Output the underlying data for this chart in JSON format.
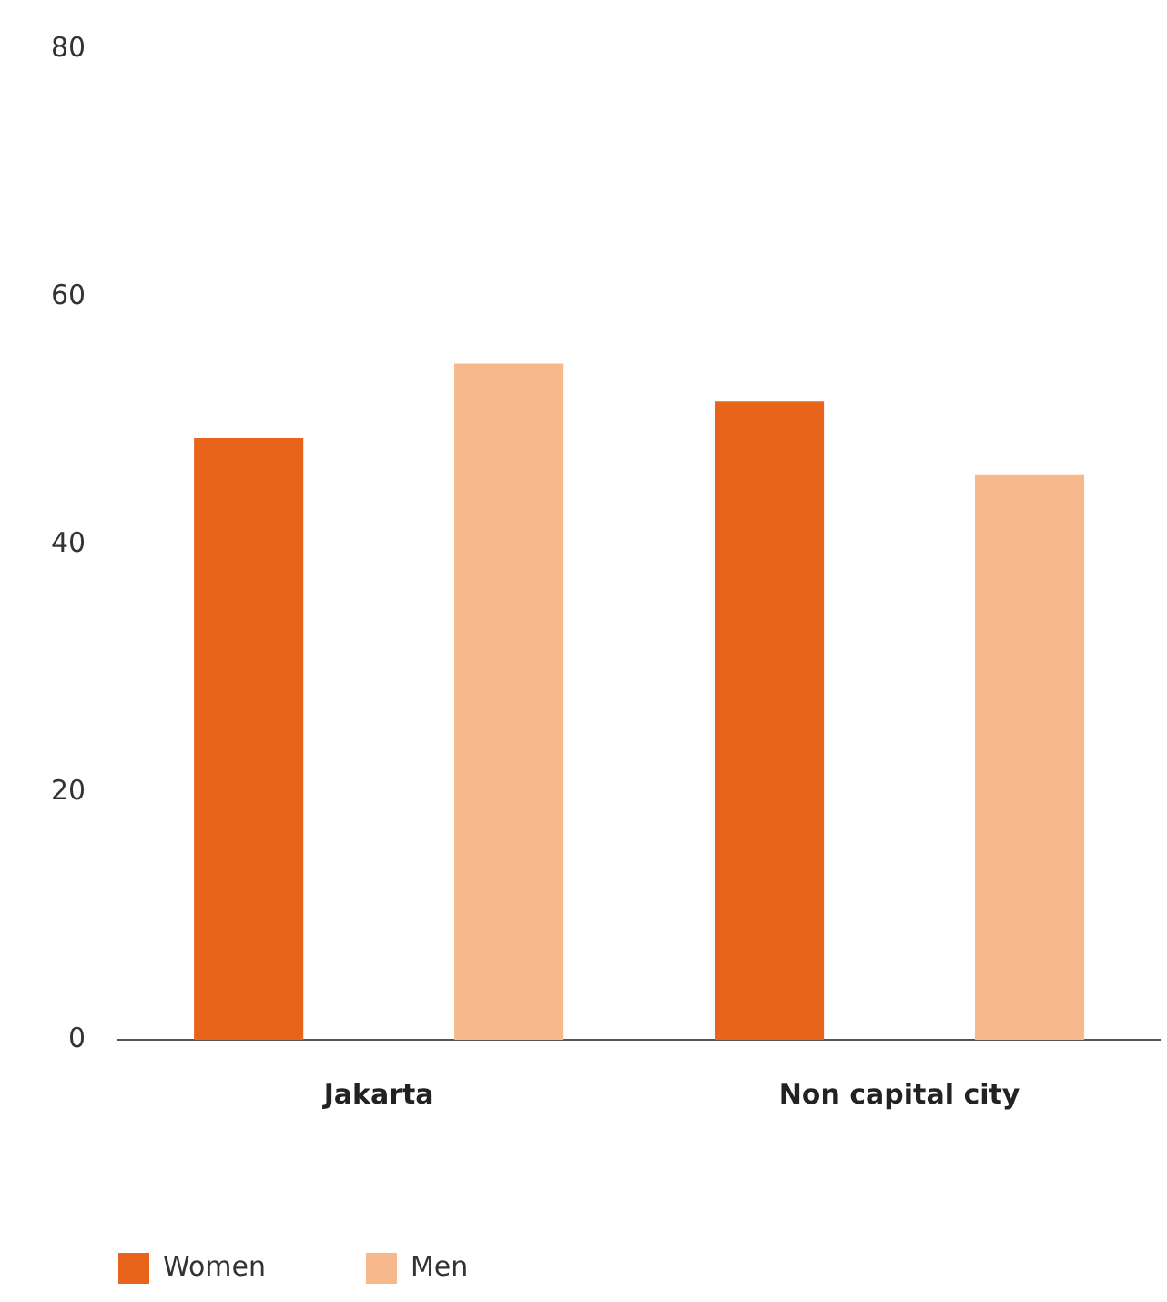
{
  "chart_data": {
    "type": "bar",
    "categories": [
      "Jakarta",
      "Non capital city"
    ],
    "series": [
      {
        "name": "Women",
        "color": "#e8641b",
        "values": [
          48.6,
          51.6
        ]
      },
      {
        "name": "Men",
        "color": "#f7b98c",
        "values": [
          54.6,
          45.6
        ]
      }
    ],
    "ylim": [
      0,
      80
    ],
    "yticks": [
      0,
      20,
      40,
      60,
      80
    ],
    "grid": false,
    "legend": "bottom left"
  }
}
